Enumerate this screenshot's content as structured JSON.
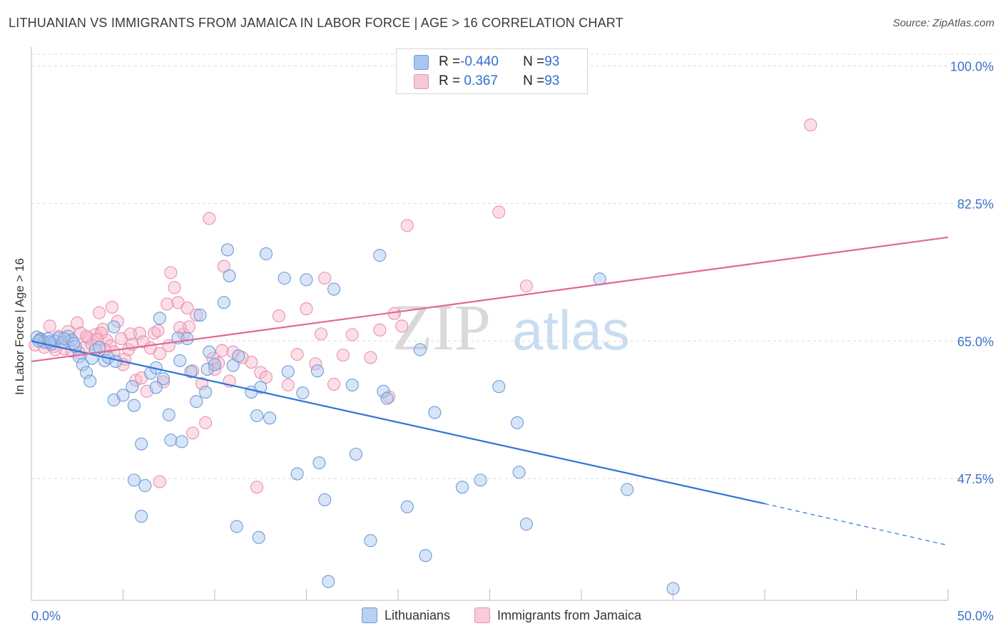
{
  "title": "LITHUANIAN VS IMMIGRANTS FROM JAMAICA IN LABOR FORCE | AGE > 16 CORRELATION CHART",
  "source": "Source: ZipAtlas.com",
  "watermark": {
    "zip": "ZIP",
    "atlas": "atlas"
  },
  "legend_box": {
    "rows": [
      {
        "r_label": "R = ",
        "r_value": "-0.440",
        "n_label": "N = ",
        "n_value": "93"
      },
      {
        "r_label": "R = ",
        "r_value": " 0.367",
        "n_label": "N = ",
        "n_value": "93"
      }
    ]
  },
  "colors": {
    "blue_fill": "#a9c6ee",
    "blue_stroke": "#6f9bd8",
    "blue_line": "#2f74d6",
    "pink_fill": "#f6b9cd",
    "pink_stroke": "#ea8fae",
    "pink_line": "#e0689a",
    "tick_label": "#3d73c9"
  },
  "chart_data": {
    "type": "scatter",
    "title": "LITHUANIAN VS IMMIGRANTS FROM JAMAICA IN LABOR FORCE | AGE > 16 CORRELATION CHART",
    "xlabel": "",
    "ylabel": "In Labor Force | Age > 16",
    "xlim": [
      0,
      50
    ],
    "ylim": [
      32,
      101.5
    ],
    "x_tick_labels": [
      "0.0%",
      "50.0%"
    ],
    "y_ticks": [
      47.5,
      65.0,
      82.5,
      100.0
    ],
    "y_tick_labels": [
      "47.5%",
      "65.0%",
      "82.5%",
      "100.0%"
    ],
    "grid": true,
    "legend": [
      "Lithuanians",
      "Immigrants from Jamaica"
    ],
    "series": [
      {
        "name": "Lithuanians",
        "trend": {
          "x0": 0,
          "y0": 65.0,
          "x1": 40.0,
          "y1": 44.3,
          "dashed_to_x": 50,
          "dashed_to_y": 39.0
        },
        "points": [
          [
            0.3,
            65.5
          ],
          [
            0.5,
            65.2
          ],
          [
            0.7,
            64.9
          ],
          [
            0.9,
            65.3
          ],
          [
            1.1,
            64.6
          ],
          [
            1.3,
            65.0
          ],
          [
            1.5,
            65.4
          ],
          [
            1.7,
            64.8
          ],
          [
            2.0,
            65.6
          ],
          [
            2.2,
            65.1
          ],
          [
            2.4,
            64.3
          ],
          [
            2.6,
            63.0
          ],
          [
            2.8,
            62.0
          ],
          [
            3.0,
            61.0
          ],
          [
            3.3,
            62.8
          ],
          [
            3.5,
            63.9
          ],
          [
            3.7,
            64.2
          ],
          [
            4.0,
            62.5
          ],
          [
            4.2,
            62.9
          ],
          [
            4.5,
            66.8
          ],
          [
            3.2,
            59.9
          ],
          [
            4.5,
            57.5
          ],
          [
            5.0,
            58.1
          ],
          [
            5.5,
            59.2
          ],
          [
            5.6,
            56.8
          ],
          [
            6.5,
            60.9
          ],
          [
            6.8,
            61.6
          ],
          [
            7.0,
            67.9
          ],
          [
            7.2,
            60.2
          ],
          [
            7.5,
            55.6
          ],
          [
            8.0,
            65.4
          ],
          [
            8.1,
            62.5
          ],
          [
            8.5,
            65.3
          ],
          [
            8.7,
            61.1
          ],
          [
            9.0,
            57.3
          ],
          [
            9.2,
            68.3
          ],
          [
            9.5,
            58.5
          ],
          [
            9.6,
            61.4
          ],
          [
            9.7,
            63.6
          ],
          [
            10.0,
            62.0
          ],
          [
            10.5,
            69.9
          ],
          [
            10.7,
            76.6
          ],
          [
            10.8,
            73.3
          ],
          [
            11.0,
            61.9
          ],
          [
            11.3,
            63.1
          ],
          [
            12.0,
            58.5
          ],
          [
            12.3,
            55.5
          ],
          [
            12.5,
            59.1
          ],
          [
            12.8,
            76.1
          ],
          [
            13.0,
            55.2
          ],
          [
            13.8,
            73.0
          ],
          [
            14.0,
            61.1
          ],
          [
            14.5,
            48.1
          ],
          [
            14.8,
            58.4
          ],
          [
            15.0,
            72.8
          ],
          [
            15.6,
            61.2
          ],
          [
            15.7,
            49.5
          ],
          [
            16.0,
            44.8
          ],
          [
            16.5,
            71.6
          ],
          [
            17.5,
            59.4
          ],
          [
            17.7,
            50.6
          ],
          [
            18.5,
            39.6
          ],
          [
            19.0,
            75.9
          ],
          [
            19.2,
            58.6
          ],
          [
            19.4,
            57.7
          ],
          [
            20.5,
            43.9
          ],
          [
            21.2,
            63.9
          ],
          [
            21.5,
            37.7
          ],
          [
            22.0,
            55.9
          ],
          [
            23.5,
            46.4
          ],
          [
            24.5,
            47.3
          ],
          [
            25.5,
            59.2
          ],
          [
            26.5,
            54.6
          ],
          [
            26.6,
            48.3
          ],
          [
            27.0,
            41.7
          ],
          [
            31.0,
            72.9
          ],
          [
            32.5,
            46.1
          ],
          [
            35.0,
            33.5
          ],
          [
            1.0,
            64.9
          ],
          [
            0.4,
            65.0
          ],
          [
            1.8,
            65.3
          ],
          [
            2.3,
            64.7
          ],
          [
            6.0,
            51.9
          ],
          [
            7.6,
            52.4
          ],
          [
            8.2,
            52.2
          ],
          [
            6.2,
            46.6
          ],
          [
            6.0,
            42.7
          ],
          [
            11.2,
            41.4
          ],
          [
            12.4,
            40.0
          ],
          [
            16.2,
            34.4
          ],
          [
            5.6,
            47.3
          ],
          [
            6.8,
            59.1
          ],
          [
            4.6,
            62.4
          ]
        ]
      },
      {
        "name": "Immigrants from Jamaica",
        "trend": {
          "x0": 0,
          "y0": 62.4,
          "x1": 50,
          "y1": 78.2
        },
        "points": [
          [
            0.2,
            64.5
          ],
          [
            0.5,
            65.3
          ],
          [
            0.8,
            64.7
          ],
          [
            1.0,
            66.9
          ],
          [
            1.2,
            64.3
          ],
          [
            1.5,
            65.6
          ],
          [
            1.8,
            64.0
          ],
          [
            2.0,
            65.0
          ],
          [
            2.2,
            63.7
          ],
          [
            2.5,
            67.3
          ],
          [
            2.7,
            66.0
          ],
          [
            2.9,
            64.2
          ],
          [
            3.1,
            65.4
          ],
          [
            3.3,
            64.6
          ],
          [
            3.5,
            65.8
          ],
          [
            3.7,
            68.6
          ],
          [
            3.9,
            66.5
          ],
          [
            4.1,
            65.1
          ],
          [
            4.3,
            64.4
          ],
          [
            4.5,
            63.6
          ],
          [
            4.7,
            67.5
          ],
          [
            4.9,
            65.3
          ],
          [
            5.1,
            62.7
          ],
          [
            5.3,
            63.9
          ],
          [
            5.5,
            64.6
          ],
          [
            5.7,
            60.0
          ],
          [
            5.9,
            66.0
          ],
          [
            6.1,
            64.9
          ],
          [
            6.3,
            58.6
          ],
          [
            6.5,
            64.1
          ],
          [
            6.7,
            66.0
          ],
          [
            7.0,
            63.4
          ],
          [
            7.2,
            59.8
          ],
          [
            7.4,
            69.7
          ],
          [
            7.6,
            73.7
          ],
          [
            7.8,
            71.8
          ],
          [
            8.0,
            69.9
          ],
          [
            8.3,
            65.9
          ],
          [
            8.5,
            69.2
          ],
          [
            8.6,
            66.8
          ],
          [
            8.8,
            61.2
          ],
          [
            9.0,
            68.3
          ],
          [
            9.3,
            59.6
          ],
          [
            9.5,
            54.6
          ],
          [
            9.7,
            80.6
          ],
          [
            10.0,
            61.4
          ],
          [
            10.2,
            62.2
          ],
          [
            10.5,
            74.5
          ],
          [
            10.8,
            59.9
          ],
          [
            11.0,
            63.6
          ],
          [
            12.0,
            62.3
          ],
          [
            12.3,
            46.4
          ],
          [
            12.5,
            61.0
          ],
          [
            12.8,
            60.4
          ],
          [
            13.5,
            68.2
          ],
          [
            14.0,
            59.4
          ],
          [
            14.5,
            63.3
          ],
          [
            15.0,
            69.1
          ],
          [
            15.5,
            62.1
          ],
          [
            15.8,
            65.9
          ],
          [
            16.0,
            73.0
          ],
          [
            16.5,
            59.5
          ],
          [
            17.0,
            63.2
          ],
          [
            17.5,
            65.8
          ],
          [
            18.5,
            62.9
          ],
          [
            19.0,
            66.4
          ],
          [
            19.5,
            57.9
          ],
          [
            19.8,
            68.5
          ],
          [
            20.2,
            66.9
          ],
          [
            20.5,
            79.7
          ],
          [
            25.5,
            81.4
          ],
          [
            27.0,
            72.0
          ],
          [
            42.5,
            92.5
          ],
          [
            7.0,
            47.1
          ],
          [
            8.8,
            53.3
          ],
          [
            3.0,
            65.6
          ],
          [
            2.0,
            66.2
          ],
          [
            4.0,
            63.9
          ],
          [
            5.0,
            62.0
          ],
          [
            6.0,
            60.3
          ],
          [
            1.3,
            63.9
          ],
          [
            2.6,
            63.5
          ],
          [
            0.7,
            64.2
          ],
          [
            3.8,
            66.0
          ],
          [
            7.5,
            64.4
          ],
          [
            9.9,
            62.8
          ],
          [
            4.4,
            69.3
          ],
          [
            6.9,
            66.3
          ],
          [
            8.1,
            66.7
          ],
          [
            11.5,
            62.9
          ],
          [
            10.4,
            63.8
          ],
          [
            5.4,
            65.9
          ],
          [
            3.6,
            65.2
          ]
        ]
      }
    ]
  }
}
